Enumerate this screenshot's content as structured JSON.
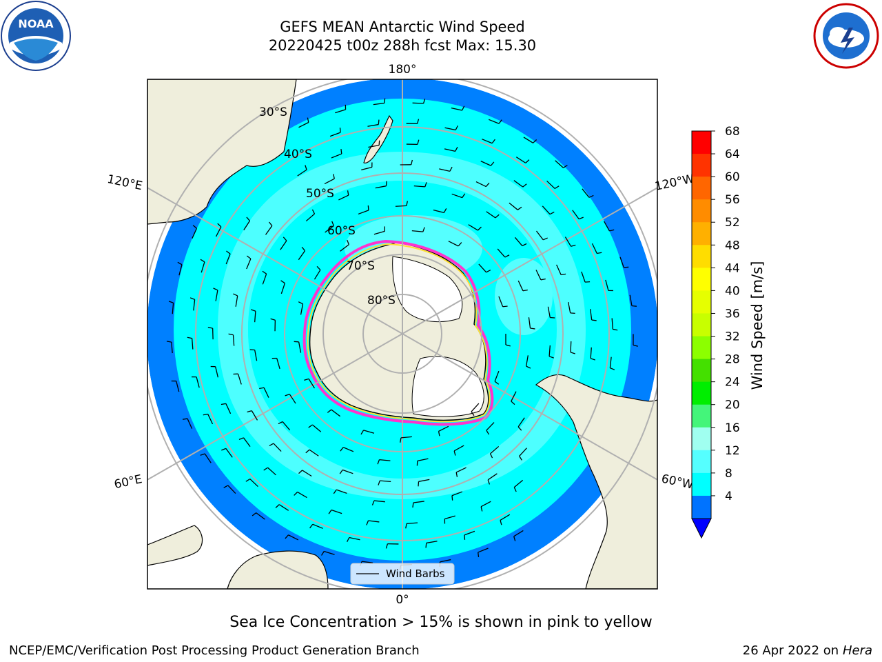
{
  "title_line1": "GEFS MEAN Antarctic Wind Speed",
  "title_line2": "20220425 t00z 288h fcst   Max: 15.30",
  "caption": "Sea Ice Concentration > 15% is shown in pink to yellow",
  "credit": "NCEP/EMC/Verification Post Processing Product Generation Branch",
  "date_prefix": "26 Apr 2022 on ",
  "host": "Hera",
  "logos": {
    "left": "NOAA",
    "right": "NATIONAL WEATHER SERVICE"
  },
  "map": {
    "projection": "south-polar-stereographic",
    "latitude_labels": [
      "30°S",
      "40°S",
      "50°S",
      "60°S",
      "70°S",
      "80°S"
    ],
    "longitude_labels": {
      "top": "180°",
      "bottom": "0°",
      "upper_left": "120°E",
      "upper_right": "120°W",
      "lower_left": "60°E",
      "lower_right": "60°W"
    },
    "legend_label": "Wind Barbs"
  },
  "colorbar": {
    "label": "Wind Speed [m/s]",
    "ticks": [
      "68",
      "64",
      "60",
      "56",
      "52",
      "48",
      "44",
      "40",
      "36",
      "32",
      "28",
      "24",
      "20",
      "16",
      "12",
      "8",
      "4"
    ],
    "colors": [
      "#ff0000",
      "#ff3300",
      "#ff6600",
      "#ff8c00",
      "#ffb000",
      "#ffdd00",
      "#ffff00",
      "#e6ff00",
      "#c8ff00",
      "#8cff00",
      "#44e000",
      "#00ee00",
      "#44f57a",
      "#a0fff0",
      "#55ffff",
      "#00ffff",
      "#0073ff"
    ],
    "under_color": "#0000ff"
  },
  "colors": {
    "land": "#efeedc",
    "ocean_light": "#0080ff",
    "wind_8_12": "#00ffff",
    "wind_12_16": "#55ffff",
    "ice_edge_pink": "#ff33cc",
    "ice_edge_yellow": "#ffdd33"
  }
}
